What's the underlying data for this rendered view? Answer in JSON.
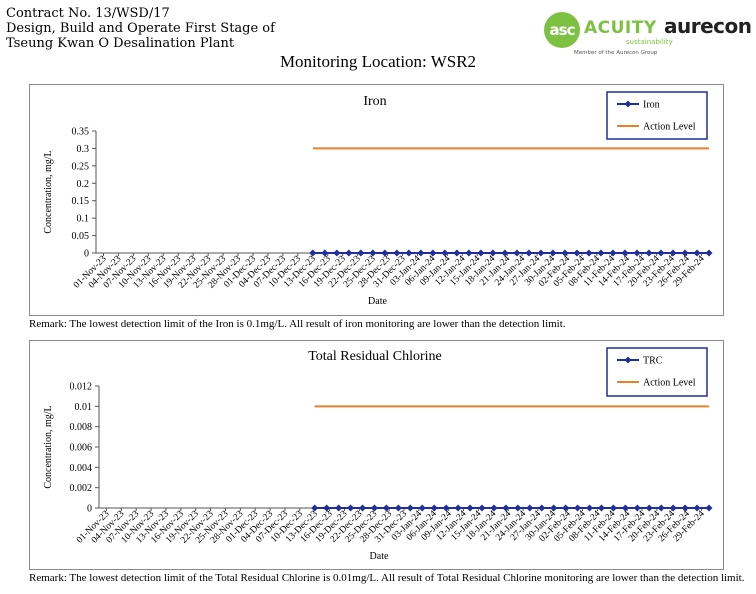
{
  "header": {
    "contract": "Contract No. 13/WSD/17",
    "line2": "Design, Build and Operate First Stage of",
    "line3": "Tseung Kwan O Desalination Plant"
  },
  "logos": {
    "acuity_mark": "asc",
    "acuity_name": "ACUITY",
    "acuity_sub": "sustainability",
    "acuity_member": "Member of the Aurecon Group",
    "aurecon": "aurecon",
    "acuity_color": "#7dc142"
  },
  "page_title": "Monitoring Location: WSR2",
  "chart_data": [
    {
      "type": "line",
      "title": "Iron",
      "xlabel": "Date",
      "ylabel": "Concentration, mg/L",
      "ylim": [
        0,
        0.35
      ],
      "yticks": [
        "0",
        "0.05",
        "0.1",
        "0.15",
        "0.2",
        "0.25",
        "0.3",
        "0.35"
      ],
      "grid": false,
      "legend_position": "top-right",
      "x": [
        "01-Nov-23",
        "04-Nov-23",
        "07-Nov-23",
        "10-Nov-23",
        "13-Nov-23",
        "16-Nov-23",
        "19-Nov-23",
        "22-Nov-23",
        "25-Nov-23",
        "28-Nov-23",
        "01-Dec-23",
        "04-Dec-23",
        "07-Dec-23",
        "10-Dec-23",
        "13-Dec-23",
        "16-Dec-23",
        "19-Dec-23",
        "22-Dec-23",
        "25-Dec-23",
        "28-Dec-23",
        "31-Dec-23",
        "03-Jan-24",
        "06-Jan-24",
        "09-Jan-24",
        "12-Jan-24",
        "15-Jan-24",
        "18-Jan-24",
        "21-Jan-24",
        "24-Jan-24",
        "27-Jan-24",
        "30-Jan-24",
        "02-Feb-24",
        "05-Feb-24",
        "08-Feb-24",
        "11-Feb-24",
        "14-Feb-24",
        "17-Feb-24",
        "20-Feb-24",
        "23-Feb-24",
        "26-Feb-24",
        "29-Feb-24"
      ],
      "series": [
        {
          "name": "Iron",
          "color": "#1f2f9e",
          "marker": "diamond",
          "start": "13-Dec-23",
          "end": "29-Feb-24",
          "value": 0,
          "points": 34
        },
        {
          "name": "Action Level",
          "color": "#e8822a",
          "start": "13-Dec-23",
          "end": "29-Feb-24",
          "value": 0.3
        }
      ],
      "remark": "Remark: The lowest detection limit of the Iron is 0.1mg/L. All result of iron monitoring are lower than the detection limit."
    },
    {
      "type": "line",
      "title": "Total Residual Chlorine",
      "xlabel": "Date",
      "ylabel": "Concentration, mg/L",
      "ylim": [
        0,
        0.012
      ],
      "yticks": [
        "0",
        "0.002",
        "0.004",
        "0.006",
        "0.008",
        "0.01",
        "0.012"
      ],
      "grid": false,
      "legend_position": "top-right",
      "x": [
        "01-Nov-23",
        "04-Nov-23",
        "07-Nov-23",
        "10-Nov-23",
        "13-Nov-23",
        "16-Nov-23",
        "19-Nov-23",
        "22-Nov-23",
        "25-Nov-23",
        "28-Nov-23",
        "01-Dec-23",
        "04-Dec-23",
        "07-Dec-23",
        "10-Dec-23",
        "13-Dec-23",
        "16-Dec-23",
        "19-Dec-23",
        "22-Dec-23",
        "25-Dec-23",
        "28-Dec-23",
        "31-Dec-23",
        "03-Jan-24",
        "06-Jan-24",
        "09-Jan-24",
        "12-Jan-24",
        "15-Jan-24",
        "18-Jan-24",
        "21-Jan-24",
        "24-Jan-24",
        "27-Jan-24",
        "30-Jan-24",
        "02-Feb-24",
        "05-Feb-24",
        "08-Feb-24",
        "11-Feb-24",
        "14-Feb-24",
        "17-Feb-24",
        "20-Feb-24",
        "23-Feb-24",
        "26-Feb-24",
        "29-Feb-24"
      ],
      "series": [
        {
          "name": "TRC",
          "color": "#1f2f9e",
          "marker": "diamond",
          "start": "13-Dec-23",
          "end": "29-Feb-24",
          "value": 0,
          "points": 34
        },
        {
          "name": "Action Level",
          "color": "#e8822a",
          "start": "13-Dec-23",
          "end": "29-Feb-24",
          "value": 0.01
        }
      ],
      "remark": "Remark: The lowest detection limit of the Total Residual Chlorine is 0.01mg/L. All result of Total Residual Chlorine monitoring are lower than the detection limit."
    }
  ]
}
